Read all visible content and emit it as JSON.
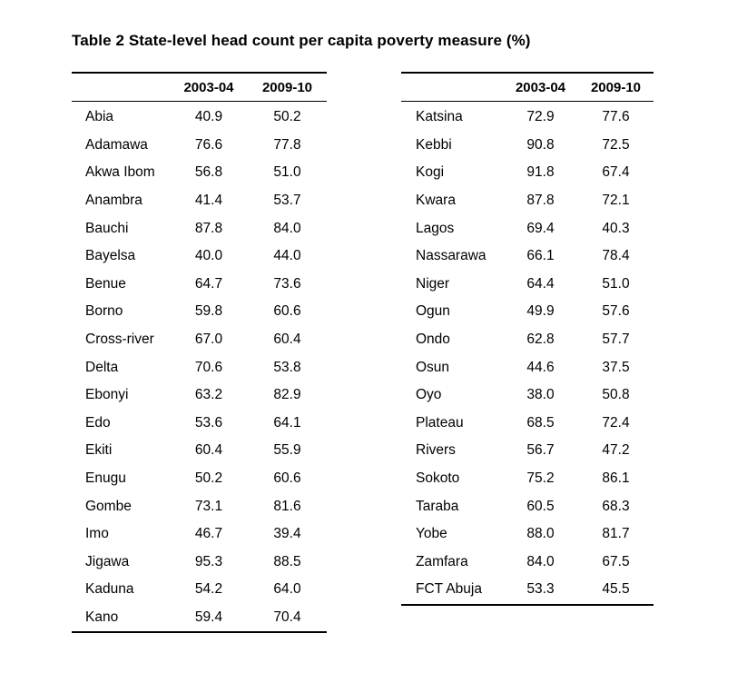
{
  "title": "Table 2 State-level head count per capita poverty measure (%)",
  "columns": [
    "",
    "2003-04",
    "2009-10"
  ],
  "left_table": [
    {
      "state": "Abia",
      "y2003": "40.9",
      "y2009": "50.2"
    },
    {
      "state": "Adamawa",
      "y2003": "76.6",
      "y2009": "77.8"
    },
    {
      "state": "Akwa Ibom",
      "y2003": "56.8",
      "y2009": "51.0"
    },
    {
      "state": "Anambra",
      "y2003": "41.4",
      "y2009": "53.7"
    },
    {
      "state": "Bauchi",
      "y2003": "87.8",
      "y2009": "84.0"
    },
    {
      "state": "Bayelsa",
      "y2003": "40.0",
      "y2009": "44.0"
    },
    {
      "state": "Benue",
      "y2003": "64.7",
      "y2009": "73.6"
    },
    {
      "state": "Borno",
      "y2003": "59.8",
      "y2009": "60.6"
    },
    {
      "state": "Cross-river",
      "y2003": "67.0",
      "y2009": "60.4"
    },
    {
      "state": "Delta",
      "y2003": "70.6",
      "y2009": "53.8"
    },
    {
      "state": "Ebonyi",
      "y2003": "63.2",
      "y2009": "82.9"
    },
    {
      "state": "Edo",
      "y2003": "53.6",
      "y2009": "64.1"
    },
    {
      "state": "Ekiti",
      "y2003": "60.4",
      "y2009": "55.9"
    },
    {
      "state": "Enugu",
      "y2003": "50.2",
      "y2009": "60.6"
    },
    {
      "state": "Gombe",
      "y2003": "73.1",
      "y2009": "81.6"
    },
    {
      "state": "Imo",
      "y2003": "46.7",
      "y2009": "39.4"
    },
    {
      "state": "Jigawa",
      "y2003": "95.3",
      "y2009": "88.5"
    },
    {
      "state": "Kaduna",
      "y2003": "54.2",
      "y2009": "64.0"
    },
    {
      "state": "Kano",
      "y2003": "59.4",
      "y2009": "70.4"
    }
  ],
  "right_table": [
    {
      "state": "Katsina",
      "y2003": "72.9",
      "y2009": "77.6"
    },
    {
      "state": "Kebbi",
      "y2003": "90.8",
      "y2009": "72.5"
    },
    {
      "state": "Kogi",
      "y2003": "91.8",
      "y2009": "67.4"
    },
    {
      "state": "Kwara",
      "y2003": "87.8",
      "y2009": "72.1"
    },
    {
      "state": "Lagos",
      "y2003": "69.4",
      "y2009": "40.3"
    },
    {
      "state": "Nassarawa",
      "y2003": "66.1",
      "y2009": "78.4"
    },
    {
      "state": "Niger",
      "y2003": "64.4",
      "y2009": "51.0"
    },
    {
      "state": "Ogun",
      "y2003": "49.9",
      "y2009": "57.6"
    },
    {
      "state": "Ondo",
      "y2003": "62.8",
      "y2009": "57.7"
    },
    {
      "state": "Osun",
      "y2003": "44.6",
      "y2009": "37.5"
    },
    {
      "state": "Oyo",
      "y2003": "38.0",
      "y2009": "50.8"
    },
    {
      "state": "Plateau",
      "y2003": "68.5",
      "y2009": "72.4"
    },
    {
      "state": "Rivers",
      "y2003": "56.7",
      "y2009": "47.2"
    },
    {
      "state": "Sokoto",
      "y2003": "75.2",
      "y2009": "86.1"
    },
    {
      "state": "Taraba",
      "y2003": "60.5",
      "y2009": "68.3"
    },
    {
      "state": "Yobe",
      "y2003": "88.0",
      "y2009": "81.7"
    },
    {
      "state": "Zamfara",
      "y2003": "84.0",
      "y2009": "67.5"
    },
    {
      "state": "FCT Abuja",
      "y2003": "53.3",
      "y2009": "45.5"
    }
  ]
}
